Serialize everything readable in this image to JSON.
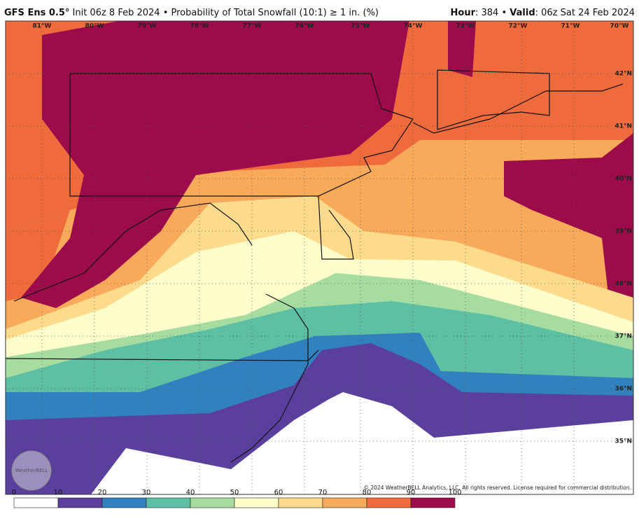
{
  "header": {
    "model": "GFS Ens 0.5°",
    "description": "Init 06z 8 Feb 2024 • Probability of Total Snowfall (10:1) ≥ 1 in. (%)",
    "hour_label": "Hour",
    "hour_value": ": 384 •",
    "valid_label": "Valid",
    "valid_value": ": 06z Sat 24 Feb 2024"
  },
  "longitude_labels": [
    "81°W",
    "80°W",
    "79°W",
    "78°W",
    "77°W",
    "76°W",
    "75°W",
    "74°W",
    "73°W",
    "72°W",
    "71°W",
    "70°W"
  ],
  "latitude_labels": [
    "42°N",
    "41°N",
    "40°N",
    "39°N",
    "38°N",
    "37°N",
    "36°N",
    "35°N"
  ],
  "copyright": "© 2024 WeatherBELL Analytics, LLC. All rights reserved. License required for commercial distribution.",
  "logo": "WeatherBELL",
  "colorbar": {
    "ticks": [
      "0",
      "10",
      "20",
      "30",
      "40",
      "50",
      "60",
      "70",
      "80",
      "90",
      "100"
    ],
    "colors": [
      "#ffffff",
      "#5b3f9c",
      "#3181bf",
      "#5dbfa4",
      "#a7dca1",
      "#fdfccb",
      "#fcdc8c",
      "#f8a95a",
      "#ef6b3c",
      "#9c0c4a"
    ]
  }
}
